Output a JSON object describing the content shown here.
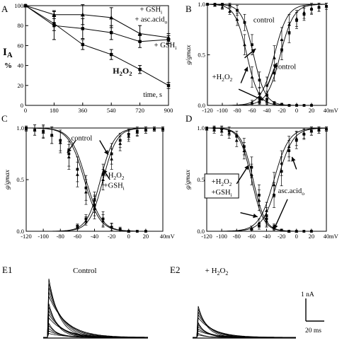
{
  "figure": {
    "background": "#ffffff",
    "line_color": "#000000"
  },
  "chart_data": [
    {
      "id": "A",
      "type": "line",
      "panel_label": "A",
      "ylabel_main": "I",
      "ylabel_sub": "A",
      "ylabel_unit": "%",
      "xlabel": "time, s",
      "xlim": [
        0,
        900
      ],
      "ylim": [
        0,
        100
      ],
      "xticks": [
        0,
        180,
        360,
        540,
        720,
        900
      ],
      "yticks": [
        0,
        20,
        40,
        60,
        80,
        100
      ],
      "grid": false,
      "series": [
        {
          "name": "GSHi",
          "label_parts": [
            "+ GSH",
            "i"
          ],
          "label_pos": [
            790,
            94
          ],
          "x": [
            0,
            180,
            360,
            540,
            720,
            900
          ],
          "y": [
            100,
            91,
            91,
            88,
            72,
            68
          ],
          "err": [
            0,
            4,
            10,
            10,
            8,
            4
          ]
        },
        {
          "name": "asc.acido",
          "label_parts": [
            "+ asc.acid",
            "o"
          ],
          "label_pos": [
            790,
            84
          ],
          "x": [
            0,
            180,
            360,
            540,
            720,
            900
          ],
          "y": [
            100,
            80,
            77,
            73,
            64,
            66
          ],
          "err": [
            0,
            14,
            10,
            7,
            6,
            4
          ]
        },
        {
          "name": "GSHi",
          "label_parts": [
            "+ GSH",
            "i"
          ],
          "label_pos": [
            880,
            58
          ],
          "x": [
            0,
            180,
            360,
            540,
            720,
            900
          ],
          "y": [
            100,
            82,
            61,
            51,
            36,
            20
          ],
          "err": [
            0,
            7,
            5,
            5,
            4,
            3
          ]
        }
      ],
      "annotations": [
        {
          "parts": [
            "H",
            "2",
            "O",
            "2"
          ],
          "pos": [
            610,
            32
          ],
          "bold": true
        }
      ]
    },
    {
      "id": "B",
      "type": "line",
      "panel_label": "B",
      "ylabel": "g/gmax",
      "xlabel": "mV",
      "xlim": [
        -120,
        40
      ],
      "ylim": [
        0,
        1.0
      ],
      "xticks": [
        -120,
        -100,
        -80,
        -60,
        -40,
        -20,
        0,
        20,
        40
      ],
      "yticks": [
        0.0,
        0.5,
        1.0
      ],
      "grid": false,
      "series": [
        {
          "name": "control inactivation",
          "kind": "inact",
          "v_half": -58,
          "slope": 8,
          "x": [
            -120,
            -110,
            -100,
            -90,
            -80,
            -70,
            -60,
            -50,
            -40,
            -30,
            -20,
            -10,
            0,
            10,
            20
          ],
          "y": [
            1.0,
            1.0,
            1.0,
            0.99,
            0.94,
            0.82,
            0.6,
            0.25,
            0.06,
            0.02,
            0.01,
            0.0,
            0.0,
            0.0,
            0.0
          ],
          "err": [
            0,
            0,
            0,
            0.02,
            0.05,
            0.08,
            0.1,
            0.08,
            0.04,
            0.02,
            0.01,
            0,
            0,
            0,
            0
          ]
        },
        {
          "name": "H2O2 inactivation",
          "kind": "inact",
          "v_half": -67,
          "slope": 8,
          "x": [
            -120,
            -110,
            -100,
            -90,
            -80,
            -70,
            -60,
            -50,
            -40,
            -30,
            -20
          ],
          "y": [
            1.0,
            0.99,
            0.97,
            0.93,
            0.85,
            0.6,
            0.28,
            0.12,
            0.04,
            0.02,
            0.01
          ],
          "err": [
            0,
            0.01,
            0.02,
            0.03,
            0.06,
            0.1,
            0.1,
            0.06,
            0.03,
            0.01,
            0.01
          ]
        },
        {
          "name": "control activation",
          "kind": "act",
          "v_half": -22,
          "slope": 9,
          "x": [
            -50,
            -40,
            -30,
            -20,
            -10,
            0,
            10,
            20,
            30,
            40
          ],
          "y": [
            0.03,
            0.1,
            0.32,
            0.55,
            0.72,
            0.84,
            0.9,
            0.95,
            0.97,
            0.98
          ],
          "err": [
            0.02,
            0.04,
            0.08,
            0.1,
            0.1,
            0.08,
            0.06,
            0.05,
            0.04,
            0.03
          ]
        },
        {
          "name": "H2O2 activation",
          "kind": "act",
          "v_half": -30,
          "slope": 9,
          "x": [
            -60,
            -50,
            -40,
            -30,
            -20,
            -10,
            0,
            10,
            20,
            30,
            40
          ],
          "y": [
            0.03,
            0.08,
            0.2,
            0.47,
            0.65,
            0.8,
            0.86,
            0.92,
            0.96,
            0.97,
            0.98
          ],
          "err": [
            0.02,
            0.04,
            0.08,
            0.12,
            0.12,
            0.1,
            0.08,
            0.06,
            0.05,
            0.04,
            0.03
          ]
        }
      ],
      "annotations": [
        {
          "parts": [
            "control"
          ],
          "pos": [
            -44,
            0.82
          ],
          "arrow_to": null
        },
        {
          "parts": [
            "control"
          ],
          "pos": [
            -15,
            0.36
          ],
          "arrow_to": null
        },
        {
          "parts": [
            "+H",
            "2",
            "O",
            "2"
          ],
          "pos": [
            -100,
            0.26
          ],
          "arrow_to": null
        }
      ],
      "arrows": [
        {
          "from": [
            -70,
            0.47
          ],
          "to": [
            -55,
            0.56
          ]
        },
        {
          "from": [
            -75,
            0.22
          ],
          "to": [
            -66,
            0.38
          ]
        },
        {
          "from": [
            -78,
            0.16
          ],
          "to": [
            -45,
            0.05
          ]
        },
        {
          "from": [
            -40,
            0.18
          ],
          "to": [
            -27,
            0.42
          ]
        }
      ]
    },
    {
      "id": "C",
      "type": "line",
      "panel_label": "C",
      "ylabel": "g/gmax",
      "xlabel": "mV",
      "xlim": [
        -120,
        40
      ],
      "ylim": [
        0,
        1.0
      ],
      "xticks": [
        -120,
        -100,
        -80,
        -60,
        -40,
        -20,
        0,
        20,
        40
      ],
      "yticks": [
        0.0,
        0.5,
        1.0
      ],
      "grid": false,
      "series": [
        {
          "name": "control inactivation",
          "kind": "inact",
          "v_half": -50,
          "slope": 9,
          "x": [
            -120,
            -110,
            -100,
            -90,
            -80,
            -70,
            -60,
            -50,
            -40,
            -30,
            -20,
            -10,
            0,
            10,
            20
          ],
          "y": [
            1.0,
            0.98,
            0.97,
            0.93,
            0.88,
            0.75,
            0.6,
            0.42,
            0.25,
            0.12,
            0.04,
            0.02,
            0.0,
            0.0,
            0.0
          ],
          "err": [
            0.02,
            0.05,
            0.06,
            0.08,
            0.1,
            0.12,
            0.12,
            0.12,
            0.1,
            0.07,
            0.04,
            0.02,
            0,
            0,
            0
          ]
        },
        {
          "name": "H2O2+GSHi inactivation",
          "kind": "inact",
          "v_half": -52,
          "slope": 9,
          "x": [
            -120,
            -110,
            -100,
            -90,
            -80,
            -70,
            -60,
            -50,
            -40,
            -30,
            -20,
            -10,
            0
          ],
          "y": [
            0.99,
            0.98,
            0.96,
            0.93,
            0.86,
            0.72,
            0.55,
            0.38,
            0.22,
            0.1,
            0.04,
            0.01,
            0.0
          ],
          "err": [
            0.02,
            0.05,
            0.06,
            0.08,
            0.1,
            0.12,
            0.12,
            0.12,
            0.1,
            0.06,
            0.03,
            0.01,
            0
          ]
        },
        {
          "name": "control activation",
          "kind": "act",
          "v_half": -33,
          "slope": 8,
          "x": [
            -60,
            -50,
            -40,
            -30,
            -20,
            -10,
            0,
            10,
            20,
            30,
            40
          ],
          "y": [
            0.05,
            0.12,
            0.3,
            0.55,
            0.75,
            0.88,
            0.94,
            0.97,
            0.98,
            0.99,
            0.99
          ],
          "err": [
            0.02,
            0.04,
            0.08,
            0.1,
            0.1,
            0.07,
            0.05,
            0.04,
            0.03,
            0.02,
            0.02
          ]
        },
        {
          "name": "H2O2+GSHi activation",
          "kind": "act",
          "v_half": -30,
          "slope": 8,
          "x": [
            -60,
            -50,
            -40,
            -30,
            -20,
            -10,
            0,
            10,
            20,
            30,
            40
          ],
          "y": [
            0.04,
            0.1,
            0.26,
            0.5,
            0.7,
            0.85,
            0.92,
            0.96,
            0.98,
            0.99,
            0.99
          ],
          "err": [
            0.02,
            0.04,
            0.08,
            0.1,
            0.1,
            0.07,
            0.05,
            0.04,
            0.03,
            0.02,
            0.02
          ]
        }
      ],
      "annotations": [
        {
          "parts": [
            "control"
          ],
          "pos": [
            -55,
            0.88
          ],
          "arrow_to": null
        },
        {
          "parts": [
            "+H",
            "2",
            "O",
            "2"
          ],
          "pos": [
            -17,
            0.52
          ],
          "arrow_to": null
        },
        {
          "parts": [
            "+GSH",
            "i"
          ],
          "pos": [
            -17,
            0.42
          ],
          "arrow_to": null
        }
      ],
      "arrows": [
        {
          "from": [
            -62,
            0.88
          ],
          "to": [
            -72,
            0.76
          ]
        },
        {
          "from": [
            -34,
            0.88
          ],
          "to": [
            -24,
            0.74
          ]
        },
        {
          "from": [
            -22,
            0.5
          ],
          "to": [
            -30,
            0.6
          ]
        }
      ]
    },
    {
      "id": "D",
      "type": "line",
      "panel_label": "D",
      "ylabel": "g/gmax",
      "xlabel": "mV",
      "xlim": [
        -120,
        40
      ],
      "ylim": [
        0,
        1.0
      ],
      "xticks": [
        -120,
        -100,
        -80,
        -60,
        -40,
        -20,
        0,
        20,
        40
      ],
      "yticks": [
        0.0,
        0.5,
        1.0
      ],
      "grid": false,
      "series": [
        {
          "name": "control inactivation",
          "kind": "inact",
          "v_half": -58,
          "slope": 8,
          "x": [
            -120,
            -110,
            -100,
            -90,
            -80,
            -70,
            -60,
            -50,
            -40,
            -30,
            -20,
            -10,
            0,
            10,
            20
          ],
          "y": [
            1.0,
            1.0,
            0.99,
            0.97,
            0.92,
            0.82,
            0.62,
            0.35,
            0.12,
            0.04,
            0.01,
            0.0,
            0.0,
            0.0,
            0.0
          ],
          "err": [
            0.01,
            0.02,
            0.03,
            0.04,
            0.05,
            0.08,
            0.1,
            0.1,
            0.07,
            0.03,
            0.01,
            0,
            0,
            0,
            0
          ]
        },
        {
          "name": "H2O2+GSHi inactivation",
          "kind": "inact",
          "v_half": -60,
          "slope": 8,
          "x": [
            -120,
            -110,
            -100,
            -90,
            -80,
            -70,
            -60,
            -50,
            -40,
            -30,
            -20,
            -10,
            0
          ],
          "y": [
            0.99,
            0.98,
            0.97,
            0.95,
            0.88,
            0.78,
            0.55,
            0.3,
            0.1,
            0.03,
            0.01,
            0.0,
            0.0
          ],
          "err": [
            0.01,
            0.03,
            0.04,
            0.05,
            0.06,
            0.08,
            0.1,
            0.1,
            0.06,
            0.03,
            0.01,
            0,
            0
          ]
        },
        {
          "name": "control activation",
          "kind": "act",
          "v_half": -25,
          "slope": 10,
          "x": [
            -60,
            -50,
            -40,
            -30,
            -20,
            -10,
            0,
            10,
            20,
            30,
            40
          ],
          "y": [
            0.02,
            0.05,
            0.15,
            0.35,
            0.58,
            0.78,
            0.88,
            0.94,
            0.97,
            0.98,
            0.99
          ],
          "err": [
            0.01,
            0.03,
            0.08,
            0.12,
            0.14,
            0.1,
            0.08,
            0.05,
            0.04,
            0.03,
            0.02
          ]
        },
        {
          "name": "asc.acido activation",
          "kind": "act",
          "v_half": -30,
          "slope": 10,
          "x": [
            -60,
            -50,
            -40,
            -30,
            -20,
            -10,
            0,
            10,
            20,
            30,
            40
          ],
          "y": [
            0.03,
            0.08,
            0.2,
            0.45,
            0.66,
            0.82,
            0.9,
            0.95,
            0.97,
            0.98,
            0.99
          ],
          "err": [
            0.02,
            0.04,
            0.08,
            0.12,
            0.12,
            0.1,
            0.07,
            0.05,
            0.04,
            0.03,
            0.02
          ]
        }
      ],
      "annotations": [
        {
          "parts": [
            "asc.acid",
            "o"
          ],
          "pos": [
            -7,
            0.37
          ],
          "arrow_to": null
        }
      ],
      "boxed_label": {
        "lines": [
          [
            "+H",
            "2",
            "O",
            "2"
          ],
          [
            "+GSH",
            "i"
          ]
        ],
        "pos": [
          -100,
          0.37
        ]
      },
      "arrows": [
        {
          "from": [
            -80,
            0.46
          ],
          "to": [
            -64,
            0.64
          ]
        },
        {
          "from": [
            -75,
            0.18
          ],
          "to": [
            -52,
            0.14
          ]
        },
        {
          "from": [
            -12,
            0.31
          ],
          "to": [
            -30,
            0.02
          ]
        },
        {
          "from": [
            0,
            0.6
          ],
          "to": [
            -6,
            0.72
          ]
        }
      ]
    }
  ],
  "traces": {
    "e1": {
      "panel_label": "E1",
      "title": "Control",
      "peaks": [
        0.95,
        0.86,
        0.78,
        0.7,
        0.63,
        0.56,
        0.49,
        0.42,
        0.36,
        0.3,
        0.24,
        0.19,
        0.14,
        0.1,
        0.06
      ]
    },
    "e2": {
      "panel_label": "E2",
      "title_parts": [
        "+ H",
        "2",
        "O",
        "2"
      ],
      "peaks": [
        0.52,
        0.46,
        0.4,
        0.35,
        0.3,
        0.25,
        0.21,
        0.17,
        0.13,
        0.1,
        0.07,
        0.04
      ]
    },
    "scale_bar": {
      "current": "1 nA",
      "time": "20 ms"
    }
  }
}
